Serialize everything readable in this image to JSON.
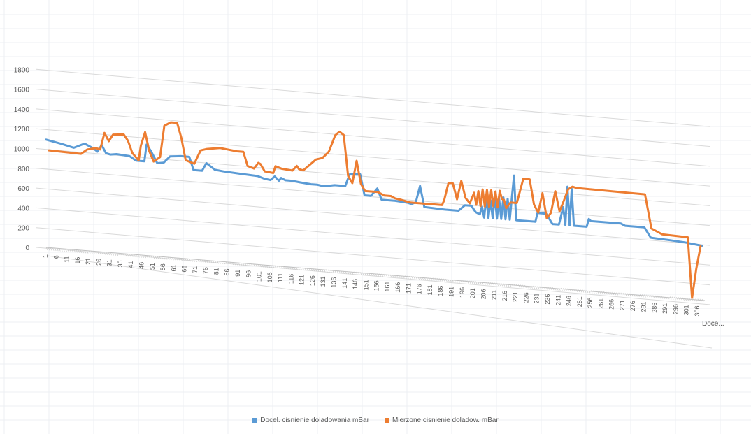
{
  "chart_data": {
    "type": "line",
    "style": "3d-line",
    "ylim": [
      0,
      1800
    ],
    "yticks": [
      "1800",
      "1600",
      "1400",
      "1200",
      "1000",
      "800",
      "600",
      "400",
      "200",
      "0"
    ],
    "x_tick_labels": [
      "1",
      "6",
      "11",
      "16",
      "21",
      "26",
      "31",
      "36",
      "41",
      "46",
      "51",
      "56",
      "61",
      "66",
      "71",
      "76",
      "81",
      "86",
      "91",
      "96",
      "101",
      "106",
      "111",
      "116",
      "121",
      "126",
      "131",
      "136",
      "141",
      "146",
      "151",
      "156",
      "161",
      "166",
      "171",
      "176",
      "181",
      "186",
      "191",
      "196",
      "201",
      "206",
      "211",
      "216",
      "221",
      "226",
      "231",
      "236",
      "241",
      "246",
      "251",
      "256",
      "261",
      "266",
      "271",
      "276",
      "281",
      "286",
      "291",
      "296",
      "301",
      "306"
    ],
    "depth_axis_label": "Doce...",
    "grid": true,
    "legend_position": "bottom",
    "series": [
      {
        "name": "Docel. cisnienie doladowania mBar",
        "color": "#5B9BD5",
        "points": [
          [
            1,
            1090
          ],
          [
            8,
            1060
          ],
          [
            14,
            1030
          ],
          [
            16,
            1050
          ],
          [
            19,
            1080
          ],
          [
            21,
            1060
          ],
          [
            23,
            1040
          ],
          [
            25,
            1010
          ],
          [
            27,
            1080
          ],
          [
            29,
            1000
          ],
          [
            31,
            990
          ],
          [
            34,
            1000
          ],
          [
            40,
            990
          ],
          [
            43,
            950
          ],
          [
            47,
            950
          ],
          [
            48,
            1120
          ],
          [
            50,
            1060
          ],
          [
            53,
            940
          ],
          [
            56,
            950
          ],
          [
            59,
            1020
          ],
          [
            64,
            1030
          ],
          [
            68,
            1030
          ],
          [
            70,
            900
          ],
          [
            74,
            900
          ],
          [
            76,
            980
          ],
          [
            80,
            920
          ],
          [
            84,
            910
          ],
          [
            92,
            900
          ],
          [
            100,
            890
          ],
          [
            103,
            870
          ],
          [
            106,
            860
          ],
          [
            108,
            900
          ],
          [
            110,
            860
          ],
          [
            111,
            890
          ],
          [
            113,
            870
          ],
          [
            116,
            870
          ],
          [
            120,
            860
          ],
          [
            125,
            850
          ],
          [
            128,
            850
          ],
          [
            131,
            840
          ],
          [
            136,
            860
          ],
          [
            141,
            860
          ],
          [
            143,
            980
          ],
          [
            146,
            990
          ],
          [
            148,
            990
          ],
          [
            150,
            780
          ],
          [
            153,
            780
          ],
          [
            156,
            860
          ],
          [
            158,
            750
          ],
          [
            164,
            750
          ],
          [
            170,
            740
          ],
          [
            172,
            730
          ],
          [
            174,
            750
          ],
          [
            176,
            920
          ],
          [
            178,
            710
          ],
          [
            188,
            700
          ],
          [
            194,
            700
          ],
          [
            197,
            760
          ],
          [
            200,
            760
          ],
          [
            202,
            700
          ],
          [
            204,
            680
          ],
          [
            205,
            760
          ],
          [
            206,
            650
          ],
          [
            207,
            860
          ],
          [
            208,
            650
          ],
          [
            209,
            830
          ],
          [
            210,
            650
          ],
          [
            211,
            880
          ],
          [
            212,
            650
          ],
          [
            213,
            860
          ],
          [
            214,
            650
          ],
          [
            215,
            870
          ],
          [
            216,
            650
          ],
          [
            217,
            860
          ],
          [
            218,
            650
          ],
          [
            219,
            880
          ],
          [
            220,
            1100
          ],
          [
            221,
            650
          ],
          [
            226,
            650
          ],
          [
            230,
            650
          ],
          [
            231,
            740
          ],
          [
            235,
            740
          ],
          [
            238,
            640
          ],
          [
            241,
            640
          ],
          [
            243,
            820
          ],
          [
            244,
            640
          ],
          [
            245,
            1030
          ],
          [
            246,
            640
          ],
          [
            247,
            1010
          ],
          [
            248,
            640
          ],
          [
            254,
            640
          ],
          [
            255,
            720
          ],
          [
            256,
            700
          ],
          [
            270,
            700
          ],
          [
            272,
            680
          ],
          [
            281,
            680
          ],
          [
            284,
            580
          ],
          [
            293,
            570
          ],
          [
            300,
            560
          ],
          [
            308,
            540
          ]
        ]
      },
      {
        "name": "Mierzone cisnienie doladow. mBar",
        "color": "#ED7D31",
        "points": [
          [
            1,
            1010
          ],
          [
            16,
            1000
          ],
          [
            19,
            1050
          ],
          [
            23,
            1070
          ],
          [
            25,
            1060
          ],
          [
            27,
            1230
          ],
          [
            29,
            1150
          ],
          [
            31,
            1220
          ],
          [
            36,
            1230
          ],
          [
            38,
            1170
          ],
          [
            40,
            1050
          ],
          [
            43,
            980
          ],
          [
            44,
            1130
          ],
          [
            46,
            1270
          ],
          [
            48,
            1080
          ],
          [
            50,
            980
          ],
          [
            53,
            1030
          ],
          [
            55,
            1350
          ],
          [
            58,
            1390
          ],
          [
            61,
            1390
          ],
          [
            63,
            1240
          ],
          [
            65,
            1020
          ],
          [
            69,
            990
          ],
          [
            72,
            1130
          ],
          [
            75,
            1150
          ],
          [
            81,
            1170
          ],
          [
            89,
            1150
          ],
          [
            92,
            1150
          ],
          [
            94,
            1010
          ],
          [
            97,
            990
          ],
          [
            99,
            1050
          ],
          [
            100,
            1040
          ],
          [
            102,
            970
          ],
          [
            106,
            960
          ],
          [
            107,
            1030
          ],
          [
            110,
            1010
          ],
          [
            115,
            1000
          ],
          [
            117,
            1050
          ],
          [
            118,
            1020
          ],
          [
            120,
            1010
          ],
          [
            126,
            1130
          ],
          [
            129,
            1150
          ],
          [
            132,
            1220
          ],
          [
            135,
            1390
          ],
          [
            137,
            1430
          ],
          [
            139,
            1400
          ],
          [
            141,
            990
          ],
          [
            143,
            920
          ],
          [
            145,
            1150
          ],
          [
            147,
            920
          ],
          [
            149,
            850
          ],
          [
            155,
            850
          ],
          [
            158,
            820
          ],
          [
            161,
            820
          ],
          [
            163,
            800
          ],
          [
            166,
            790
          ],
          [
            170,
            770
          ],
          [
            185,
            770
          ],
          [
            186,
            820
          ],
          [
            188,
            1000
          ],
          [
            190,
            1000
          ],
          [
            192,
            840
          ],
          [
            194,
            1030
          ],
          [
            196,
            860
          ],
          [
            198,
            810
          ],
          [
            200,
            920
          ],
          [
            201,
            800
          ],
          [
            202,
            940
          ],
          [
            203,
            790
          ],
          [
            204,
            960
          ],
          [
            205,
            790
          ],
          [
            206,
            960
          ],
          [
            207,
            790
          ],
          [
            208,
            960
          ],
          [
            209,
            800
          ],
          [
            210,
            950
          ],
          [
            211,
            790
          ],
          [
            212,
            960
          ],
          [
            213,
            880
          ],
          [
            214,
            870
          ],
          [
            215,
            790
          ],
          [
            217,
            850
          ],
          [
            220,
            850
          ],
          [
            223,
            1100
          ],
          [
            226,
            1100
          ],
          [
            228,
            850
          ],
          [
            230,
            770
          ],
          [
            232,
            970
          ],
          [
            234,
            720
          ],
          [
            236,
            780
          ],
          [
            238,
            1000
          ],
          [
            240,
            800
          ],
          [
            242,
            910
          ],
          [
            244,
            1030
          ],
          [
            246,
            1060
          ],
          [
            248,
            1050
          ],
          [
            280,
            1040
          ],
          [
            283,
            700
          ],
          [
            288,
            650
          ],
          [
            300,
            640
          ],
          [
            302,
            30
          ],
          [
            304,
            330
          ],
          [
            306,
            560
          ]
        ]
      }
    ]
  }
}
